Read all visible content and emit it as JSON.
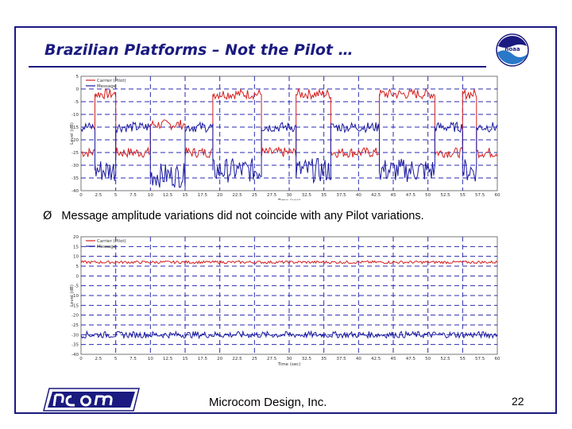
{
  "slide": {
    "title": "Brazilian Platforms – Not the Pilot …",
    "bullet_mark": "Ø",
    "bullet_text": "Message amplitude variations did not coincide with any Pilot variations.",
    "company": "Microcom Design, Inc.",
    "page_number": "22",
    "logo_text": "noaa"
  },
  "colors": {
    "frame": "#1a1a80",
    "message": "#1a1aa0",
    "pilot": "#d42020",
    "grid": "#2a2ab0"
  },
  "chart_data": [
    {
      "type": "line",
      "ylabel": "Level (dB)",
      "xlabel": "Time (sec)",
      "x_ticks": [
        "0",
        "2.5",
        "5",
        "7.5",
        "10",
        "12.5",
        "15",
        "17.5",
        "20",
        "22.5",
        "25",
        "27.5",
        "30",
        "32.5",
        "35",
        "37.5",
        "40",
        "42.5",
        "45",
        "47.5",
        "50",
        "52.5",
        "55",
        "57.5",
        "60"
      ],
      "y_ticks": [
        "5",
        "0",
        "-5",
        "-10",
        "-15",
        "-20",
        "-25",
        "-30",
        "-35",
        "-40"
      ],
      "xlim": [
        0,
        60
      ],
      "ylim": [
        -40,
        5
      ],
      "legend": [
        "Carrier (Pilot)",
        "Message"
      ],
      "legend_position": "top-left",
      "series": [
        {
          "name": "Carrier (Pilot)",
          "segments": [
            [
              0,
              -25
            ],
            [
              2,
              -25
            ],
            [
              2,
              -2
            ],
            [
              5,
              -2
            ],
            [
              5,
              -25
            ],
            [
              10,
              -25
            ],
            [
              10,
              -14
            ],
            [
              15,
              -14
            ],
            [
              15,
              -25
            ],
            [
              19,
              -25
            ],
            [
              19,
              -2
            ],
            [
              26,
              -2
            ],
            [
              26,
              -25
            ],
            [
              31,
              -25
            ],
            [
              31,
              -2
            ],
            [
              36,
              -2
            ],
            [
              36,
              -25
            ],
            [
              43,
              -25
            ],
            [
              43,
              -2
            ],
            [
              51,
              -2
            ],
            [
              51,
              -25
            ],
            [
              55,
              -25
            ],
            [
              55,
              -2
            ],
            [
              57,
              -2
            ],
            [
              57,
              -25
            ],
            [
              60,
              -25
            ]
          ]
        },
        {
          "name": "Message",
          "segments": [
            [
              0,
              -15
            ],
            [
              2,
              -15
            ],
            [
              2,
              -32
            ],
            [
              5,
              -32
            ],
            [
              5,
              -15
            ],
            [
              10,
              -15
            ],
            [
              10,
              -34
            ],
            [
              15,
              -34
            ],
            [
              15,
              -15
            ],
            [
              19,
              -15
            ],
            [
              19,
              -32
            ],
            [
              26,
              -32
            ],
            [
              26,
              -15
            ],
            [
              31,
              -15
            ],
            [
              31,
              -32
            ],
            [
              36,
              -32
            ],
            [
              36,
              -15
            ],
            [
              43,
              -15
            ],
            [
              43,
              -32
            ],
            [
              51,
              -32
            ],
            [
              51,
              -15
            ],
            [
              55,
              -15
            ],
            [
              55,
              -32
            ],
            [
              57,
              -32
            ],
            [
              57,
              -15
            ],
            [
              60,
              -15
            ]
          ]
        }
      ]
    },
    {
      "type": "line",
      "ylabel": "Level (dB)",
      "xlabel": "Time (sec)",
      "x_ticks": [
        "0",
        "2.5",
        "5",
        "7.5",
        "10",
        "12.5",
        "15",
        "17.5",
        "20",
        "22.5",
        "25",
        "27.5",
        "30",
        "32.5",
        "35",
        "37.5",
        "40",
        "42.5",
        "45",
        "47.5",
        "50",
        "52.5",
        "55",
        "57.5",
        "60"
      ],
      "y_ticks": [
        "20",
        "15",
        "10",
        "5",
        "0",
        "-5",
        "-10",
        "-15",
        "-20",
        "-25",
        "-30",
        "-35",
        "-40"
      ],
      "xlim": [
        0,
        60
      ],
      "ylim": [
        -40,
        20
      ],
      "legend": [
        "Carrier (Pilot)",
        "Message"
      ],
      "legend_position": "top-left",
      "series": [
        {
          "name": "Carrier (Pilot)",
          "segments": [
            [
              0,
              7
            ],
            [
              60,
              7
            ]
          ]
        },
        {
          "name": "Message",
          "segments": [
            [
              0,
              -30
            ],
            [
              60,
              -30
            ]
          ]
        }
      ]
    }
  ]
}
